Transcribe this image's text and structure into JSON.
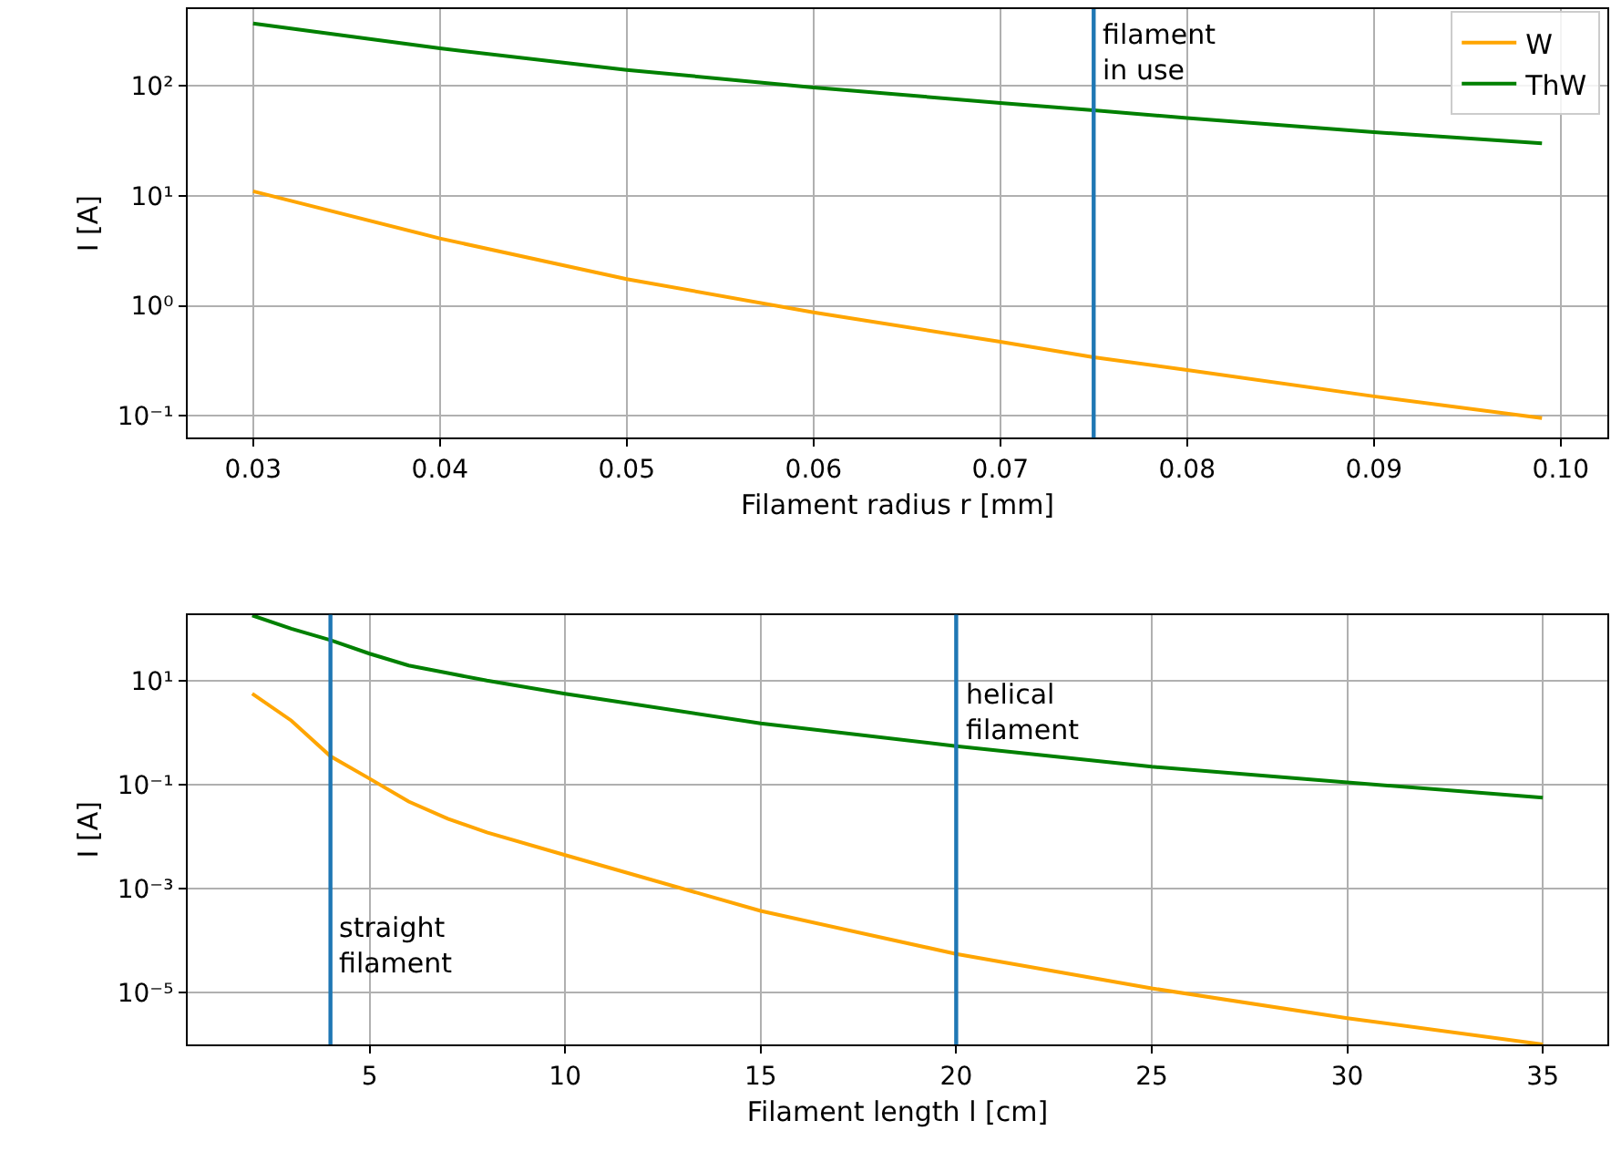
{
  "chart_data": [
    {
      "type": "line",
      "xlabel": "Filament radius r [mm]",
      "ylabel": "I [A]",
      "log": "y",
      "grid": true,
      "legend": "top right",
      "marker": "none",
      "line_style": "solid",
      "xlim": [
        0.0265,
        0.1025
      ],
      "xticks": [
        {
          "value": 0.03,
          "label": "0.03"
        },
        {
          "value": 0.04,
          "label": "0.04"
        },
        {
          "value": 0.05,
          "label": "0.05"
        },
        {
          "value": 0.06,
          "label": "0.06"
        },
        {
          "value": 0.07,
          "label": "0.07"
        },
        {
          "value": 0.08,
          "label": "0.08"
        },
        {
          "value": 0.09,
          "label": "0.09"
        },
        {
          "value": 0.1,
          "label": "0.10"
        }
      ],
      "ylim": [
        0.063,
        500
      ],
      "yticks": [
        {
          "value": 0.1,
          "label": "10⁻¹"
        },
        {
          "value": 1,
          "label": "10⁰"
        },
        {
          "value": 10,
          "label": "10¹"
        },
        {
          "value": 100,
          "label": "10²"
        }
      ],
      "x": [
        0.03,
        0.04,
        0.05,
        0.06,
        0.07,
        0.075,
        0.08,
        0.09,
        0.099
      ],
      "series": [
        {
          "name": "W",
          "color": "#ffa500",
          "values": [
            11,
            4.1,
            1.75,
            0.87,
            0.47,
            0.34,
            0.26,
            0.15,
            0.095
          ]
        },
        {
          "name": "ThW",
          "color": "#008000",
          "values": [
            370,
            220,
            140,
            97,
            70,
            60,
            51,
            38,
            30
          ]
        }
      ],
      "ref_lines": [
        {
          "axis": "x",
          "value": 0.075,
          "color": "#1f77b4"
        }
      ],
      "annotations": [
        {
          "text": "filament\nin use",
          "x": 0.075,
          "y": 200
        }
      ]
    },
    {
      "type": "line",
      "xlabel": "Filament length l [cm]",
      "ylabel": "I [A]",
      "log": "y",
      "grid": true,
      "marker": "none",
      "line_style": "solid",
      "xlim": [
        0.35,
        36.65
      ],
      "xticks": [
        5,
        10,
        15,
        20,
        25,
        30,
        35
      ],
      "ylim": [
        1e-06,
        185
      ],
      "yticks": [
        {
          "value": 1e-05,
          "label": "10⁻⁵"
        },
        {
          "value": 0.001,
          "label": "10⁻³"
        },
        {
          "value": 0.1,
          "label": "10⁻¹"
        },
        {
          "value": 10,
          "label": "10¹"
        }
      ],
      "x": [
        2,
        3,
        4,
        5,
        6,
        7,
        8,
        10,
        15,
        20,
        25,
        30,
        35
      ],
      "series": [
        {
          "color": "#ffa500",
          "values": [
            5.6,
            1.7,
            0.35,
            0.13,
            0.047,
            0.022,
            0.012,
            0.0044,
            0.00037,
            5.5e-05,
            1.2e-05,
            3.2e-06,
            1e-06
          ]
        },
        {
          "color": "#008000",
          "values": [
            180,
            100,
            60,
            33,
            19.5,
            14,
            10,
            5.6,
            1.5,
            0.55,
            0.22,
            0.11,
            0.056
          ]
        }
      ],
      "ref_lines": [
        {
          "axis": "x",
          "value": 4,
          "color": "#1f77b4"
        },
        {
          "axis": "x",
          "value": 20,
          "color": "#1f77b4"
        }
      ],
      "annotations": [
        {
          "text": "straight\nfilament",
          "x": 4,
          "y": 8e-05
        },
        {
          "text": "helical\nfilament",
          "x": 20,
          "y": 2.5
        }
      ]
    }
  ]
}
